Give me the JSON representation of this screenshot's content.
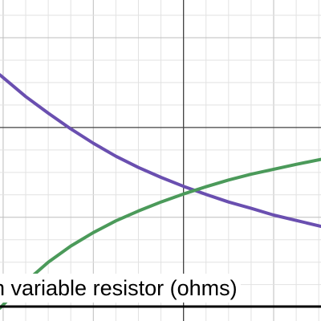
{
  "chart_data": {
    "type": "line",
    "title": "",
    "xlabel": "n variable resistor (ohms)",
    "ylabel": "",
    "grid": true,
    "axis_origin": {
      "x": 0,
      "y": 0
    },
    "xlim": [
      -4.07,
      3.05
    ],
    "ylim": [
      -4.31,
      2.84
    ],
    "series": [
      {
        "color": "#6a4fb0",
        "x": [
          -4.07,
          -3.5,
          -3.0,
          -2.5,
          -2.0,
          -1.5,
          -1.0,
          -0.5,
          0.0,
          0.5,
          1.0,
          1.5,
          2.0,
          2.5,
          3.05
        ],
        "y": [
          1.17,
          0.69,
          0.32,
          -0.03,
          -0.35,
          -0.64,
          -0.89,
          -1.11,
          -1.31,
          -1.49,
          -1.66,
          -1.8,
          -1.95,
          -2.07,
          -2.2
        ]
      },
      {
        "color": "#4b9a5a",
        "x": [
          -4.07,
          -3.5,
          -3.0,
          -2.5,
          -2.0,
          -1.5,
          -1.0,
          -0.5,
          0.0,
          0.5,
          1.0,
          1.5,
          2.0,
          2.5,
          3.05
        ],
        "y": [
          -4.02,
          -3.44,
          -3.0,
          -2.64,
          -2.34,
          -2.08,
          -1.86,
          -1.66,
          -1.48,
          -1.32,
          -1.17,
          -1.04,
          -0.93,
          -0.82,
          -0.71
        ]
      }
    ]
  }
}
